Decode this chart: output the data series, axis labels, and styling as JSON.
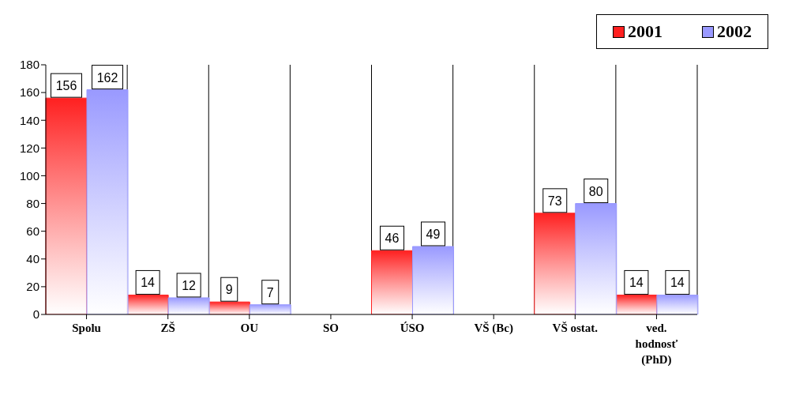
{
  "chart_data": {
    "type": "bar",
    "categories": [
      "Spolu",
      "ZŠ",
      "OU",
      "SO",
      "ÚSO",
      "VŠ (Bc)",
      "VŠ ostat.",
      "ved. hodnosť (PhD)"
    ],
    "series": [
      {
        "name": "2001",
        "color": "#ff2020",
        "values": [
          156,
          14,
          9,
          null,
          46,
          null,
          73,
          14
        ]
      },
      {
        "name": "2002",
        "color": "#9999ff",
        "values": [
          162,
          12,
          7,
          null,
          49,
          null,
          80,
          14
        ]
      }
    ],
    "ylim": [
      0,
      180
    ],
    "yticks": [
      0,
      20,
      40,
      60,
      80,
      100,
      120,
      140,
      160,
      180
    ],
    "grid": "x",
    "legend": "top right",
    "data_labels": true
  }
}
